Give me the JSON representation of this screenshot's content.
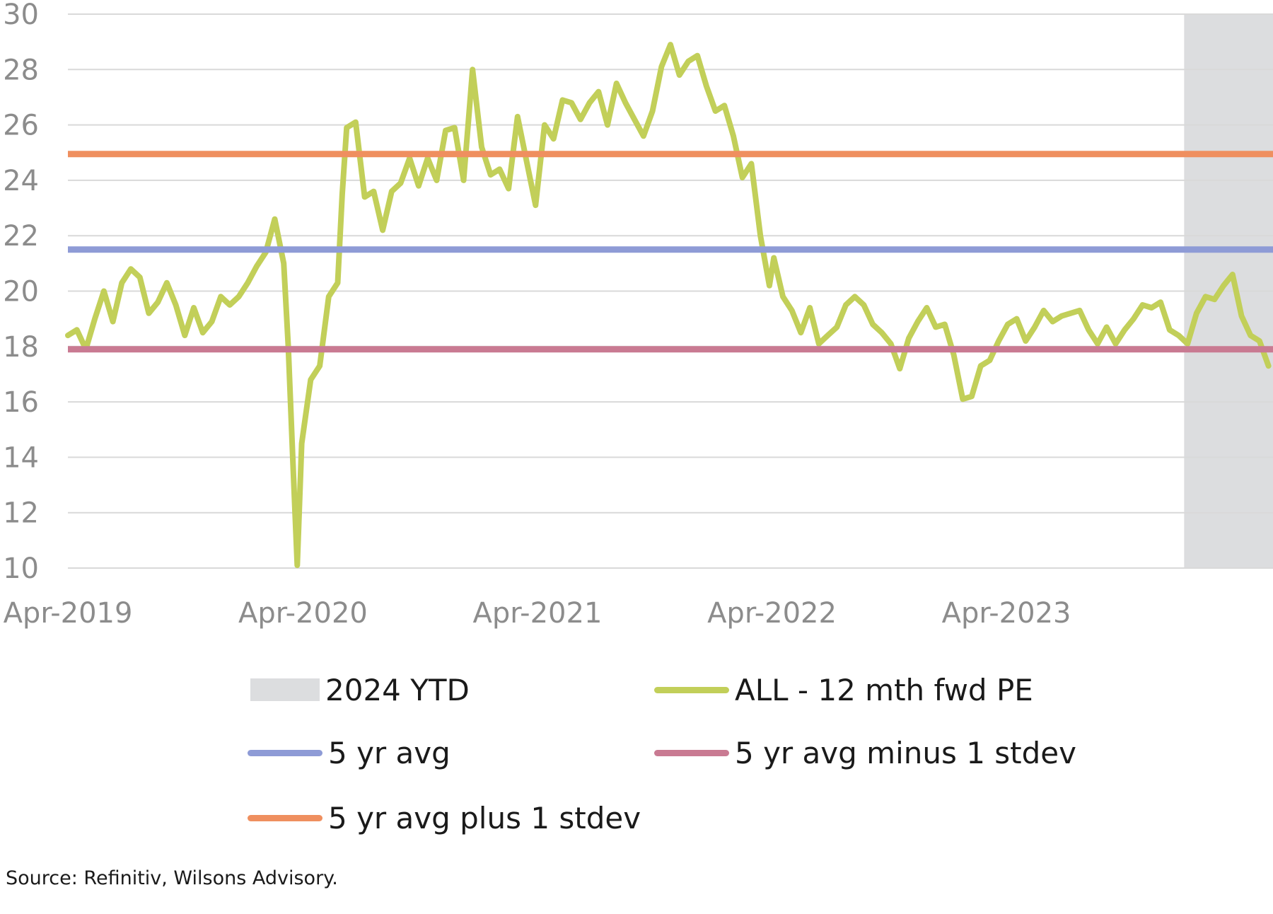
{
  "chart_data": {
    "type": "line",
    "title": "",
    "xlabel": "",
    "ylabel": "",
    "ylim": [
      10,
      30
    ],
    "yticks": [
      10,
      12,
      14,
      16,
      18,
      20,
      22,
      24,
      26,
      28,
      30
    ],
    "xlim": [
      "2019-04-01",
      "2024-05-20"
    ],
    "xticks": [
      {
        "date": "2019-04-01",
        "label": "Apr-2019"
      },
      {
        "date": "2020-04-01",
        "label": "Apr-2020"
      },
      {
        "date": "2021-04-01",
        "label": "Apr-2021"
      },
      {
        "date": "2022-04-01",
        "label": "Apr-2022"
      },
      {
        "date": "2023-04-01",
        "label": "Apr-2023"
      }
    ],
    "grid": "horizontal",
    "legend_position": "bottom",
    "shaded_region": {
      "name": "2024 YTD",
      "start": "2024-01-01",
      "end": "2024-05-20",
      "color": "#dcdddf"
    },
    "reference_lines": [
      {
        "name": "5 yr avg",
        "value": 21.5,
        "color": "#8e9bd6"
      },
      {
        "name": "5 yr avg minus 1 stdev",
        "value": 17.9,
        "color": "#c97a92"
      },
      {
        "name": "5 yr avg plus 1 stdev",
        "value": 24.95,
        "color": "#ef8f5f"
      }
    ],
    "series": [
      {
        "name": "ALL - 12 mth fwd PE",
        "color": "#c2cf59",
        "points": [
          [
            "2019-04-01",
            18.4
          ],
          [
            "2019-04-15",
            18.6
          ],
          [
            "2019-04-29",
            17.9
          ],
          [
            "2019-05-13",
            19.0
          ],
          [
            "2019-05-27",
            20.0
          ],
          [
            "2019-06-10",
            18.9
          ],
          [
            "2019-06-24",
            20.3
          ],
          [
            "2019-07-08",
            20.8
          ],
          [
            "2019-07-22",
            20.5
          ],
          [
            "2019-08-05",
            19.2
          ],
          [
            "2019-08-19",
            19.6
          ],
          [
            "2019-09-02",
            20.3
          ],
          [
            "2019-09-16",
            19.5
          ],
          [
            "2019-09-30",
            18.4
          ],
          [
            "2019-10-14",
            19.4
          ],
          [
            "2019-10-28",
            18.5
          ],
          [
            "2019-11-11",
            18.9
          ],
          [
            "2019-11-25",
            19.8
          ],
          [
            "2019-12-09",
            19.5
          ],
          [
            "2019-12-23",
            19.8
          ],
          [
            "2020-01-06",
            20.3
          ],
          [
            "2020-01-20",
            20.9
          ],
          [
            "2020-02-03",
            21.4
          ],
          [
            "2020-02-17",
            22.6
          ],
          [
            "2020-03-02",
            21.0
          ],
          [
            "2020-03-09",
            18.0
          ],
          [
            "2020-03-16",
            14.0
          ],
          [
            "2020-03-23",
            10.1
          ],
          [
            "2020-03-30",
            14.5
          ],
          [
            "2020-04-13",
            16.8
          ],
          [
            "2020-04-27",
            17.3
          ],
          [
            "2020-05-11",
            19.8
          ],
          [
            "2020-05-25",
            20.3
          ],
          [
            "2020-06-01",
            23.5
          ],
          [
            "2020-06-08",
            25.9
          ],
          [
            "2020-06-22",
            26.1
          ],
          [
            "2020-07-06",
            23.4
          ],
          [
            "2020-07-20",
            23.6
          ],
          [
            "2020-08-03",
            22.2
          ],
          [
            "2020-08-17",
            23.6
          ],
          [
            "2020-08-31",
            23.9
          ],
          [
            "2020-09-14",
            24.8
          ],
          [
            "2020-09-28",
            23.8
          ],
          [
            "2020-10-12",
            24.8
          ],
          [
            "2020-10-26",
            24.0
          ],
          [
            "2020-11-09",
            25.8
          ],
          [
            "2020-11-23",
            25.9
          ],
          [
            "2020-12-07",
            24.0
          ],
          [
            "2020-12-14",
            26.0
          ],
          [
            "2020-12-21",
            28.0
          ],
          [
            "2021-01-04",
            25.2
          ],
          [
            "2021-01-18",
            24.2
          ],
          [
            "2021-02-01",
            24.4
          ],
          [
            "2021-02-15",
            23.7
          ],
          [
            "2021-03-01",
            26.3
          ],
          [
            "2021-03-15",
            24.7
          ],
          [
            "2021-03-29",
            23.1
          ],
          [
            "2021-04-12",
            26.0
          ],
          [
            "2021-04-26",
            25.5
          ],
          [
            "2021-05-10",
            26.9
          ],
          [
            "2021-05-24",
            26.8
          ],
          [
            "2021-06-07",
            26.2
          ],
          [
            "2021-06-21",
            26.8
          ],
          [
            "2021-07-05",
            27.2
          ],
          [
            "2021-07-19",
            26.0
          ],
          [
            "2021-08-02",
            27.5
          ],
          [
            "2021-08-16",
            26.8
          ],
          [
            "2021-08-30",
            26.2
          ],
          [
            "2021-09-13",
            25.6
          ],
          [
            "2021-09-27",
            26.5
          ],
          [
            "2021-10-11",
            28.1
          ],
          [
            "2021-10-25",
            28.9
          ],
          [
            "2021-11-08",
            27.8
          ],
          [
            "2021-11-22",
            28.3
          ],
          [
            "2021-12-06",
            28.5
          ],
          [
            "2021-12-20",
            27.4
          ],
          [
            "2022-01-03",
            26.5
          ],
          [
            "2022-01-17",
            26.7
          ],
          [
            "2022-01-31",
            25.6
          ],
          [
            "2022-02-14",
            24.1
          ],
          [
            "2022-02-28",
            24.6
          ],
          [
            "2022-03-14",
            22.0
          ],
          [
            "2022-03-28",
            20.2
          ],
          [
            "2022-04-04",
            21.2
          ],
          [
            "2022-04-18",
            19.8
          ],
          [
            "2022-05-02",
            19.3
          ],
          [
            "2022-05-16",
            18.5
          ],
          [
            "2022-05-30",
            19.4
          ],
          [
            "2022-06-13",
            18.1
          ],
          [
            "2022-06-27",
            18.4
          ],
          [
            "2022-07-11",
            18.7
          ],
          [
            "2022-07-25",
            19.5
          ],
          [
            "2022-08-08",
            19.8
          ],
          [
            "2022-08-22",
            19.5
          ],
          [
            "2022-09-05",
            18.8
          ],
          [
            "2022-09-19",
            18.5
          ],
          [
            "2022-10-03",
            18.1
          ],
          [
            "2022-10-17",
            17.2
          ],
          [
            "2022-10-31",
            18.3
          ],
          [
            "2022-11-14",
            18.9
          ],
          [
            "2022-11-28",
            19.4
          ],
          [
            "2022-12-12",
            18.7
          ],
          [
            "2022-12-26",
            18.8
          ],
          [
            "2023-01-09",
            17.7
          ],
          [
            "2023-01-23",
            16.1
          ],
          [
            "2023-02-06",
            16.2
          ],
          [
            "2023-02-20",
            17.3
          ],
          [
            "2023-03-06",
            17.5
          ],
          [
            "2023-03-20",
            18.2
          ],
          [
            "2023-04-03",
            18.8
          ],
          [
            "2023-04-17",
            19.0
          ],
          [
            "2023-05-01",
            18.2
          ],
          [
            "2023-05-15",
            18.7
          ],
          [
            "2023-05-29",
            19.3
          ],
          [
            "2023-06-12",
            18.9
          ],
          [
            "2023-06-26",
            19.1
          ],
          [
            "2023-07-10",
            19.2
          ],
          [
            "2023-07-24",
            19.3
          ],
          [
            "2023-08-07",
            18.6
          ],
          [
            "2023-08-21",
            18.1
          ],
          [
            "2023-09-04",
            18.7
          ],
          [
            "2023-09-18",
            18.1
          ],
          [
            "2023-10-02",
            18.6
          ],
          [
            "2023-10-16",
            19.0
          ],
          [
            "2023-10-30",
            19.5
          ],
          [
            "2023-11-13",
            19.4
          ],
          [
            "2023-11-27",
            19.6
          ],
          [
            "2023-12-11",
            18.6
          ],
          [
            "2023-12-25",
            18.4
          ],
          [
            "2024-01-08",
            18.1
          ],
          [
            "2024-01-22",
            19.2
          ],
          [
            "2024-02-05",
            19.8
          ],
          [
            "2024-02-19",
            19.7
          ],
          [
            "2024-03-04",
            20.2
          ],
          [
            "2024-03-18",
            20.6
          ],
          [
            "2024-04-01",
            19.1
          ],
          [
            "2024-04-15",
            18.4
          ],
          [
            "2024-04-29",
            18.2
          ],
          [
            "2024-05-13",
            17.3
          ]
        ]
      }
    ]
  },
  "legend": {
    "items": [
      {
        "label": "2024 YTD"
      },
      {
        "label": "ALL - 12 mth fwd PE"
      },
      {
        "label": "5 yr avg"
      },
      {
        "label": "5 yr avg minus 1 stdev"
      },
      {
        "label": "5 yr avg plus 1 stdev"
      }
    ]
  },
  "source": "Source: Refinitiv, Wilsons Advisory."
}
